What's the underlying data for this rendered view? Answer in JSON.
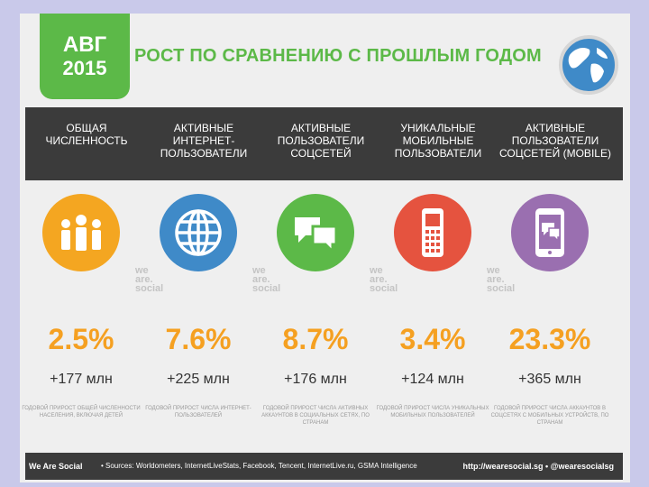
{
  "header": {
    "month": "АВГ",
    "year": "2015",
    "title": "РОСТ ПО СРАВНЕНИЮ С ПРОШЛЫМ ГОДОМ",
    "icon": "globe-icon"
  },
  "columns": [
    {
      "label": "ОБЩАЯ ЧИСЛЕННОСТЬ",
      "percent": "2.5%",
      "absolute": "+177 млн",
      "note": "ГОДОВОЙ ПРИРОСТ ОБЩЕЙ ЧИСЛЕННОСТИ НАСЕЛЕНИЯ, ВКЛЮЧАЯ ДЕТЕЙ",
      "icon": "people-icon",
      "color": "#f4a621"
    },
    {
      "label": "АКТИВНЫЕ ИНТЕРНЕТ-ПОЛЬЗОВАТЕЛИ",
      "percent": "7.6%",
      "absolute": "+225 млн",
      "note": "ГОДОВОЙ ПРИРОСТ ЧИСЛА ИНТЕРНЕТ-ПОЛЬЗОВАТЕЛЕЙ",
      "icon": "globe-grid-icon",
      "color": "#3f8ac8"
    },
    {
      "label": "АКТИВНЫЕ ПОЛЬЗОВАТЕЛИ СОЦСЕТЕЙ",
      "percent": "8.7%",
      "absolute": "+176 млн",
      "note": "ГОДОВОЙ ПРИРОСТ ЧИСЛА АКТИВНЫХ АККАУНТОВ В СОЦИАЛЬНЫХ СЕТЯХ, ПО СТРАНАМ",
      "icon": "chat-bubbles-icon",
      "color": "#5cb948"
    },
    {
      "label": "УНИКАЛЬНЫЕ МОБИЛЬНЫЕ ПОЛЬЗОВАТЕЛИ",
      "percent": "3.4%",
      "absolute": "+124 млн",
      "note": "ГОДОВОЙ ПРИРОСТ ЧИСЛА УНИКАЛЬНЫХ МОБИЛЬНЫХ ПОЛЬЗОВАТЕЛЕЙ",
      "icon": "mobile-phone-icon",
      "color": "#e5533f"
    },
    {
      "label": "АКТИВНЫЕ ПОЛЬЗОВАТЕЛИ СОЦСЕТЕЙ (MOBILE)",
      "percent": "23.3%",
      "absolute": "+365 млн",
      "note": "ГОДОВОЙ ПРИРОСТ ЧИСЛА АККАУНТОВ В СОЦСЕТЯХ С МОБИЛЬНЫХ УСТРОЙСТВ, ПО СТРАНАМ",
      "icon": "smartphone-chat-icon",
      "color": "#9a6fb0"
    }
  ],
  "watermark": {
    "line1": "we",
    "line2": "are.",
    "line3": "social"
  },
  "footer": {
    "brand": "We Are Social",
    "sources": "• Sources: Worldometers, InternetLiveStats, Facebook, Tencent, InternetLive.ru, GSMA Intelligence",
    "links": "http://wearesocial.sg • @wearesocialsg"
  }
}
